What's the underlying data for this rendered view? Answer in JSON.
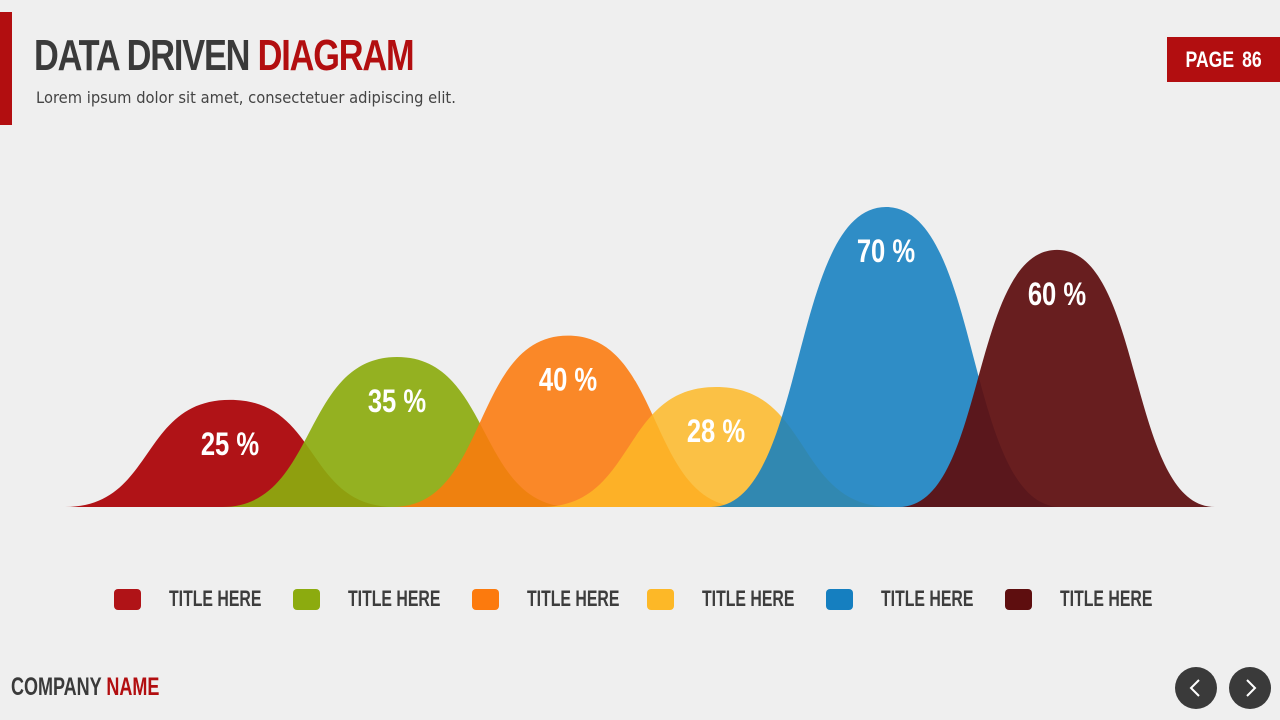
{
  "header": {
    "title_part1": "DATA DRIVEN",
    "title_part2": "DIAGRAM",
    "subtitle": "Lorem ipsum dolor sit amet, consectetuer adipiscing elit.",
    "page_label": "PAGE",
    "page_number": "86"
  },
  "footer": {
    "company_part1": "COMPANY",
    "company_part2": "NAME",
    "prev_icon": "chevron-left-icon",
    "next_icon": "chevron-right-icon"
  },
  "colors": {
    "accent": "#b20e10",
    "dark": "#3a3a3a",
    "background": "#efefef"
  },
  "chart_data": {
    "type": "area",
    "categories": [
      "TITLE HERE",
      "TITLE HERE",
      "TITLE HERE",
      "TITLE HERE",
      "TITLE HERE",
      "TITLE HERE"
    ],
    "values": [
      25,
      35,
      40,
      28,
      70,
      60
    ],
    "value_labels": [
      "25 %",
      "35 %",
      "40 %",
      "28 %",
      "70 %",
      "60 %"
    ],
    "colors": [
      "#b01317",
      "#8cab0f",
      "#fc7a0d",
      "#fdb827",
      "#157fc0",
      "#5e0e0f"
    ],
    "ylim": [
      0,
      70
    ],
    "legend_position": "bottom",
    "grid": false
  }
}
